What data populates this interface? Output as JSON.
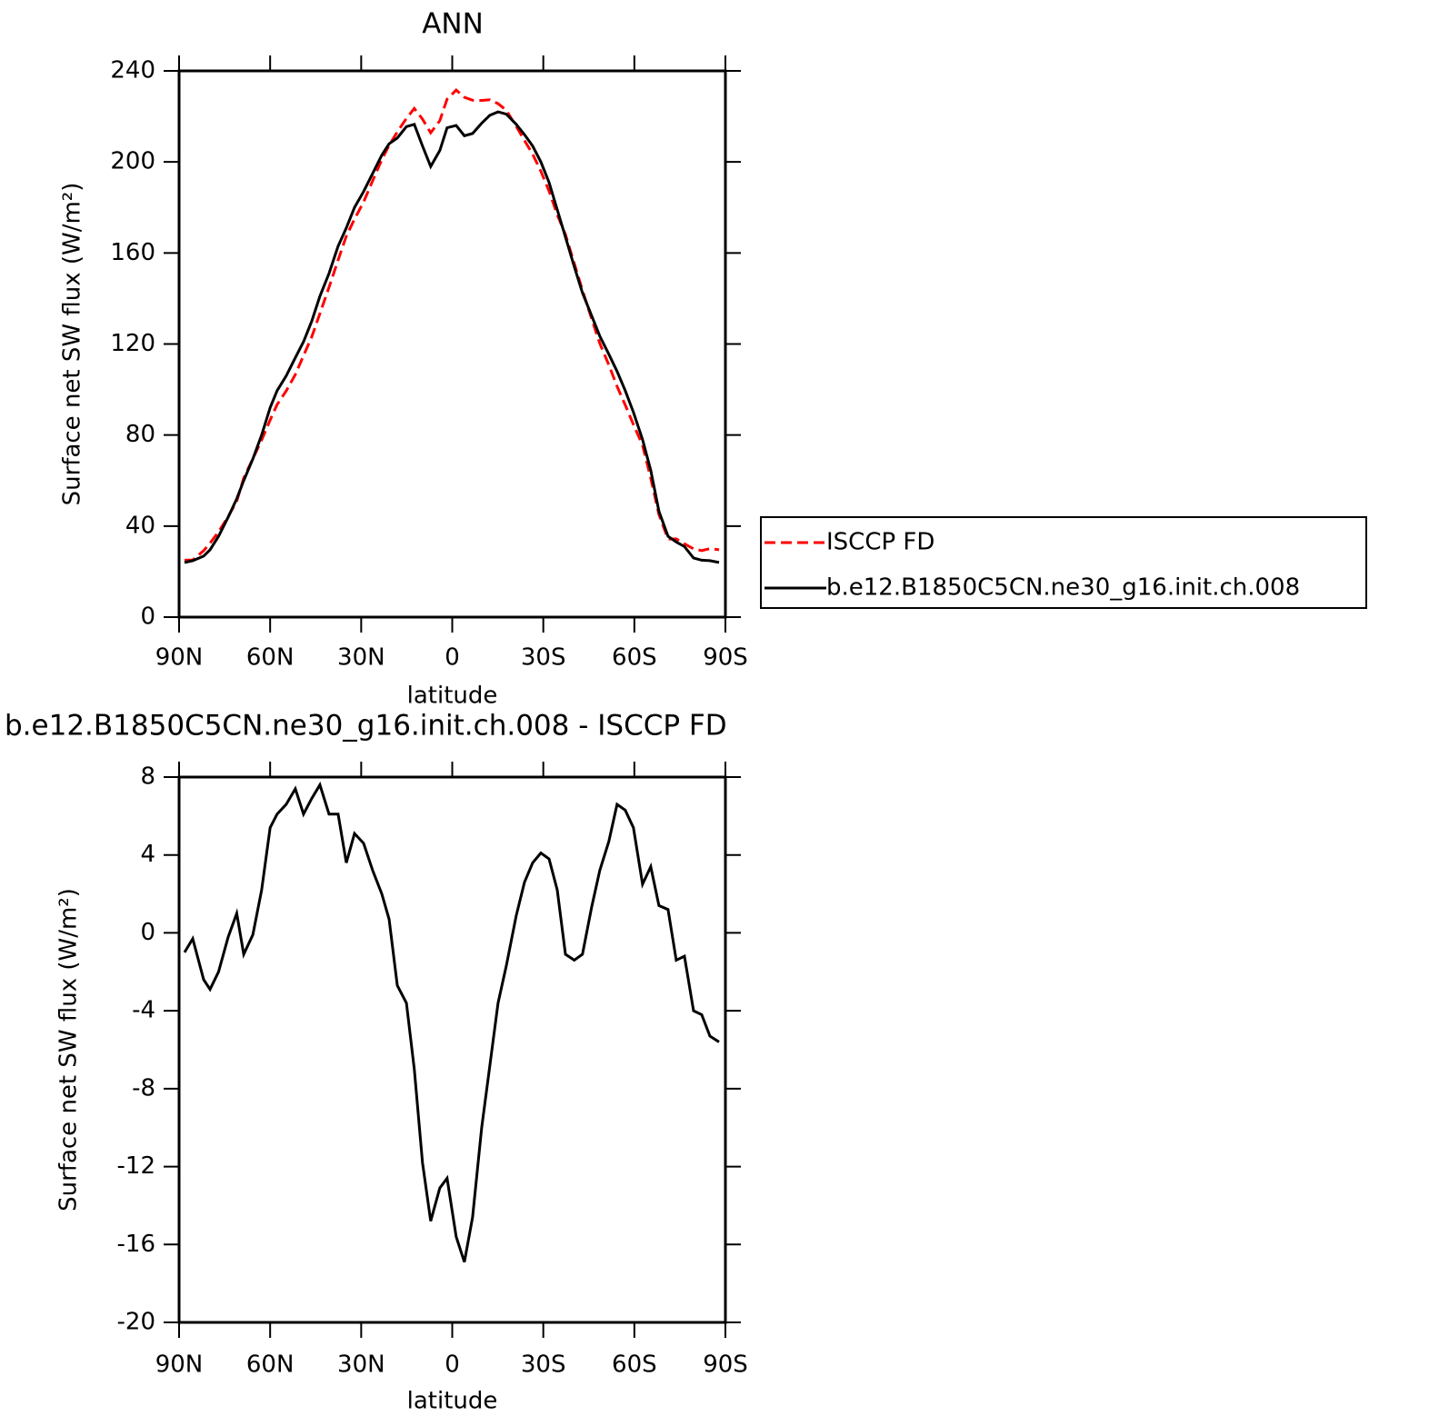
{
  "chart_data": [
    {
      "type": "line",
      "title": "ANN",
      "x_label": "latitude",
      "y_label": "Surface net SW flux (W/m²)",
      "x": [
        88.2,
        85.5,
        81.9,
        79.8,
        77,
        73.8,
        71,
        68.7,
        65.7,
        62.8,
        60,
        57.7,
        54.7,
        51.7,
        49,
        46.3,
        43.6,
        40.6,
        37.6,
        34.9,
        32.2,
        29.2,
        26.2,
        23.2,
        20.8,
        18.1,
        15.1,
        12.5,
        9.8,
        7.1,
        4.1,
        1.7,
        -1.3,
        -4,
        -6.7,
        -9.7,
        -12.4,
        -15.1,
        -17.8,
        -21.1,
        -23.8,
        -26.5,
        -29.2,
        -31.9,
        -34.6,
        -37.3,
        -40.2,
        -42.9,
        -45.9,
        -48.6,
        -51.6,
        -54.3,
        -57,
        -59.7,
        -62.7,
        -65.4,
        -68.1,
        -71.1,
        -73.8,
        -76.5,
        -79.5,
        -82.2,
        -84.9,
        -87.9
      ],
      "series": [
        {
          "name": "ISCCP FD",
          "color": "#ff0000",
          "dash": true,
          "values": [
            25,
            25.1,
            29.2,
            32.5,
            37.5,
            44.2,
            51,
            61.1,
            69.6,
            77.8,
            86.6,
            93.4,
            99.4,
            106.6,
            114.9,
            123.1,
            133.4,
            144.9,
            156.9,
            167.4,
            174.9,
            182.4,
            191.8,
            201,
            207.3,
            213.2,
            219.1,
            223.5,
            218.8,
            212.8,
            218.1,
            227.6,
            231.6,
            228.4,
            227.1,
            227,
            227.3,
            225.6,
            222.7,
            215.6,
            209.4,
            203.4,
            195.9,
            187.2,
            176.8,
            168.1,
            155.4,
            143.6,
            131.2,
            120.3,
            110.8,
            101.4,
            93.2,
            84.6,
            75.5,
            61.1,
            45.1,
            34.3,
            34.4,
            32.2,
            30,
            29.2,
            30.1,
            29.6
          ]
        },
        {
          "name": "b.e12.B1850C5CN.ne30_g16.init.ch.008",
          "color": "#000000",
          "dash": false,
          "values": [
            24,
            24.8,
            26.8,
            29.6,
            35.5,
            44,
            52,
            60,
            69.5,
            80,
            92,
            99.5,
            106,
            114,
            121,
            130,
            141,
            151,
            163,
            171,
            180,
            187,
            195,
            203,
            208,
            210.5,
            215.5,
            216.5,
            207,
            198,
            205,
            215,
            216,
            211.5,
            212.5,
            217,
            220.5,
            222,
            221,
            216.5,
            212,
            207,
            200,
            191,
            179,
            167,
            154,
            142.5,
            132.5,
            123.5,
            115.5,
            108,
            99.5,
            90,
            78,
            64.5,
            46.5,
            35.5,
            33,
            31,
            26,
            25,
            24.8,
            24
          ]
        }
      ],
      "xlim": [
        90,
        -90
      ],
      "xticks": [
        {
          "value": 90,
          "label": "90N"
        },
        {
          "value": 60,
          "label": "60N"
        },
        {
          "value": 30,
          "label": "30N"
        },
        0,
        {
          "value": -30,
          "label": "30S"
        },
        {
          "value": -60,
          "label": "60S"
        },
        {
          "value": -90,
          "label": "90S"
        }
      ],
      "ylim": [
        0,
        240
      ],
      "yticks": [
        0,
        40,
        80,
        120,
        160,
        200,
        240
      ],
      "legend": "right"
    },
    {
      "type": "line",
      "title": "b.e12.B1850C5CN.ne30_g16.init.ch.008 - ISCCP FD",
      "x_label": "latitude",
      "y_label": "Surface net SW flux (W/m²)",
      "x": [
        88.2,
        85.5,
        81.9,
        79.8,
        77,
        73.8,
        71,
        68.7,
        65.7,
        62.8,
        60,
        57.7,
        54.7,
        51.7,
        49,
        46.3,
        43.6,
        40.6,
        37.6,
        34.9,
        32.2,
        29.2,
        26.2,
        23.2,
        20.8,
        18.1,
        15.1,
        12.5,
        9.8,
        7.1,
        4.1,
        1.7,
        -1.3,
        -4,
        -6.7,
        -9.7,
        -12.4,
        -15.1,
        -17.8,
        -21.1,
        -23.8,
        -26.5,
        -29.2,
        -31.9,
        -34.6,
        -37.3,
        -40.2,
        -42.9,
        -45.9,
        -48.6,
        -51.6,
        -54.3,
        -57,
        -59.7,
        -62.7,
        -65.4,
        -68.1,
        -71.1,
        -73.8,
        -76.5,
        -79.5,
        -82.2,
        -84.9,
        -87.9
      ],
      "values": [
        -1,
        -0.3,
        -2.4,
        -2.9,
        -2,
        -0.2,
        1,
        -1.1,
        -0.1,
        2.2,
        5.4,
        6.1,
        6.6,
        7.4,
        6.1,
        6.9,
        7.6,
        6.1,
        6.1,
        3.6,
        5.1,
        4.6,
        3.2,
        2,
        0.7,
        -2.7,
        -3.6,
        -7,
        -11.8,
        -14.8,
        -13.1,
        -12.6,
        -15.6,
        -16.9,
        -14.6,
        -10,
        -6.8,
        -3.6,
        -1.7,
        0.9,
        2.6,
        3.6,
        4.1,
        3.8,
        2.2,
        -1.1,
        -1.4,
        -1.1,
        1.3,
        3.2,
        4.7,
        6.6,
        6.3,
        5.4,
        2.5,
        3.4,
        1.4,
        1.2,
        -1.4,
        -1.2,
        -4,
        -4.2,
        -5.3,
        -5.6
      ],
      "color": "#000000",
      "xlim": [
        90,
        -90
      ],
      "xticks": [
        {
          "value": 90,
          "label": "90N"
        },
        {
          "value": 60,
          "label": "60N"
        },
        {
          "value": 30,
          "label": "30N"
        },
        0,
        {
          "value": -30,
          "label": "30S"
        },
        {
          "value": -60,
          "label": "60S"
        },
        {
          "value": -90,
          "label": "90S"
        }
      ],
      "ylim": [
        -20,
        8
      ],
      "yticks": [
        -20,
        -16,
        -12,
        -8,
        -4,
        0,
        4,
        8
      ]
    }
  ]
}
